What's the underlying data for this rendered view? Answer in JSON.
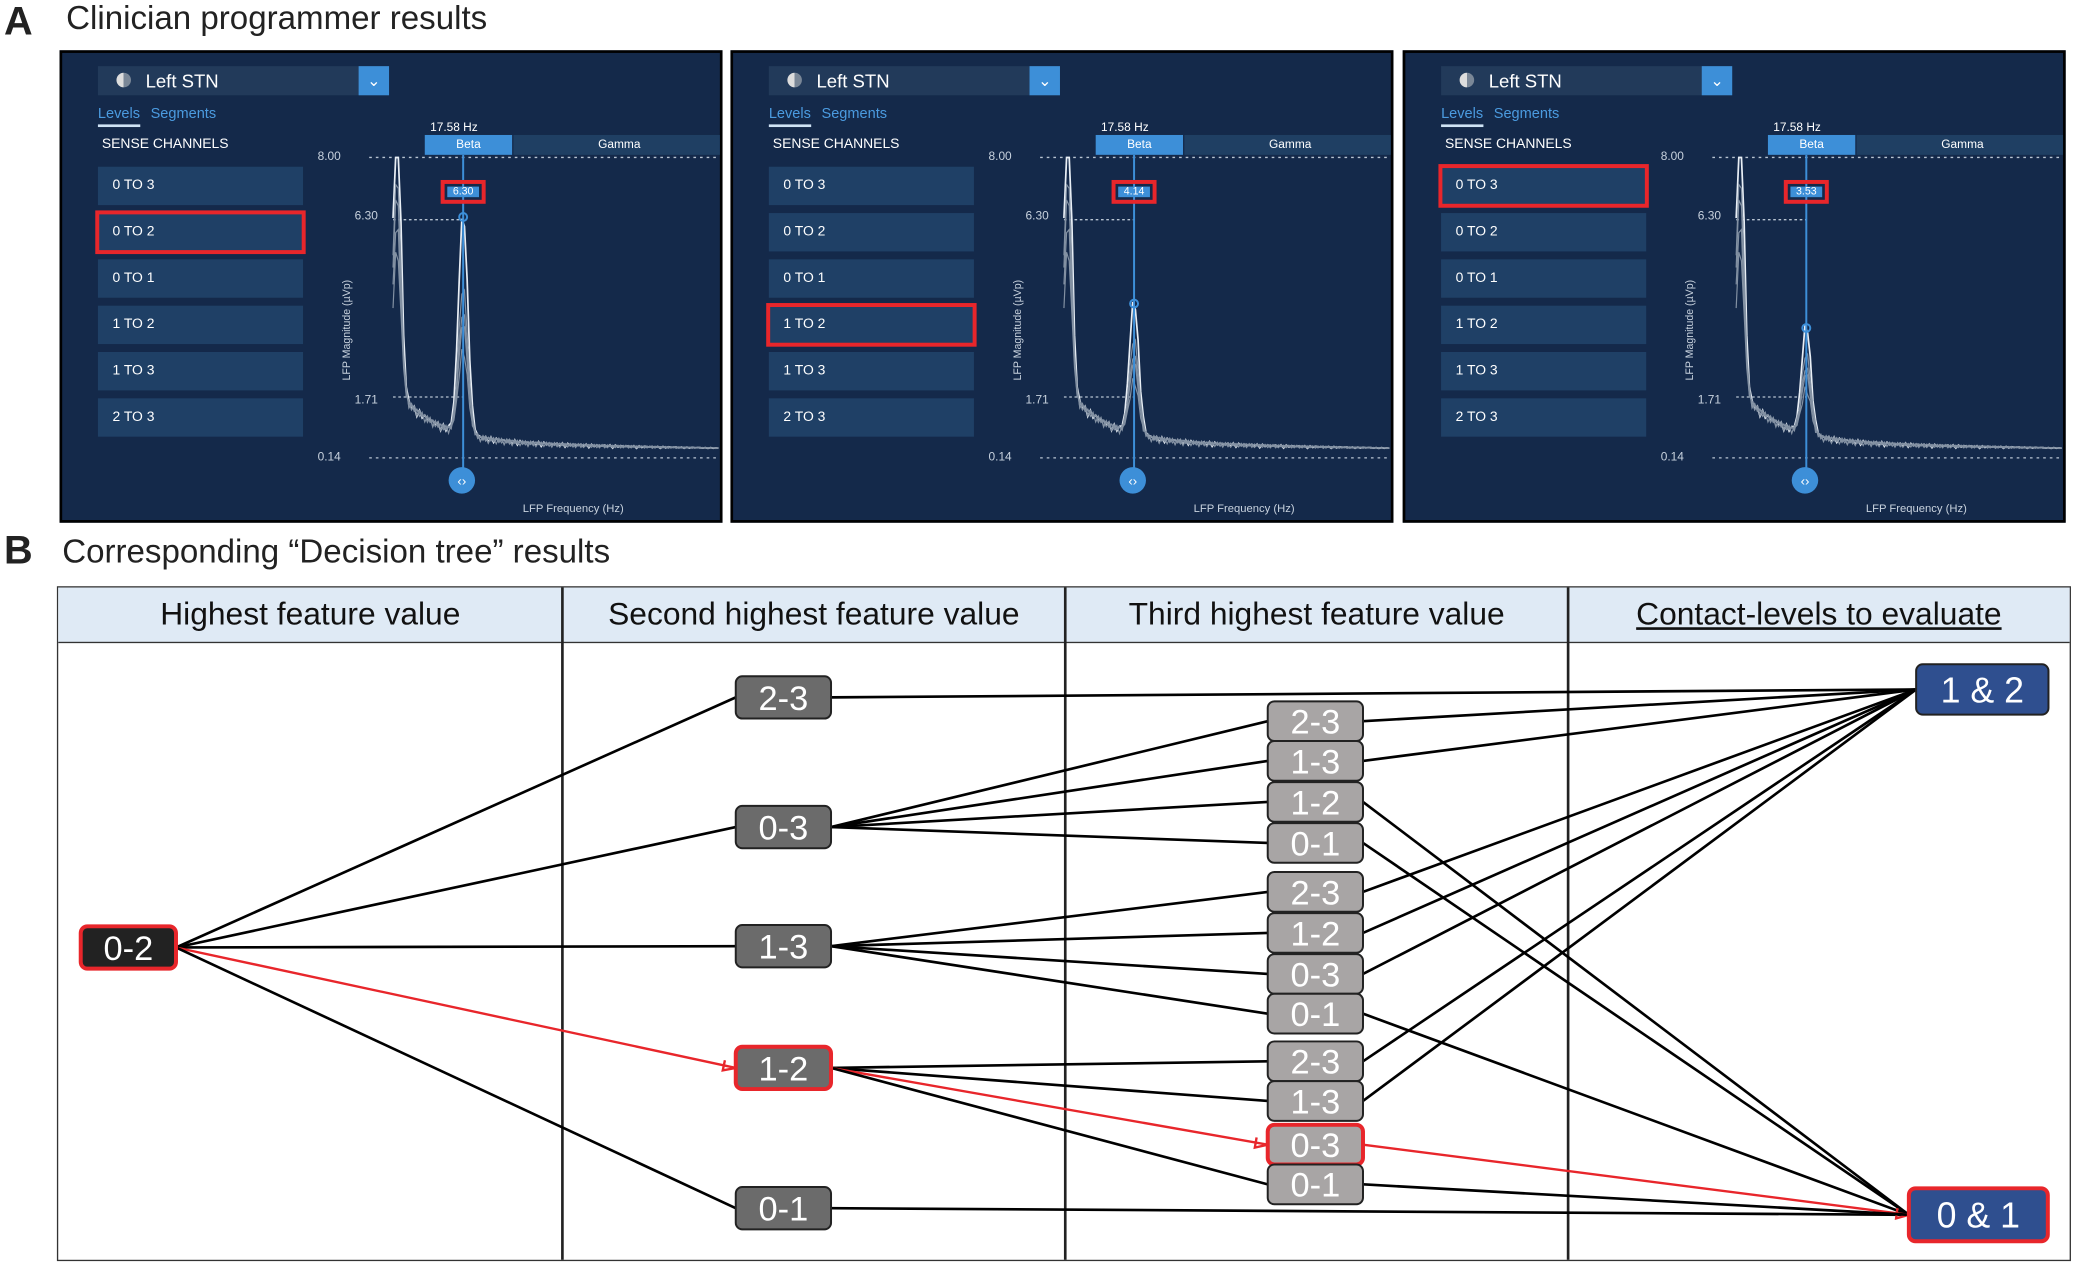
{
  "panel_a": {
    "letter": "A",
    "title": "Clinician programmer results",
    "panels": [
      {
        "hemisphere": "Left STN",
        "tabs": [
          "Levels",
          "Segments"
        ],
        "sense_label": "SENSE CHANNELS",
        "channels": [
          "0 TO 3",
          "0 TO 2",
          "0 TO 1",
          "1 TO 2",
          "1 TO 3",
          "2 TO 3"
        ],
        "selected_channel": "0 TO 2",
        "frequency_label": "17.58 Hz",
        "bands": [
          "Beta",
          "Gamma"
        ],
        "peak_value": "6.30",
        "peak_numeric": 6.3,
        "y_ticks": [
          "8.00",
          "6.30",
          "1.71",
          "0.14"
        ],
        "y_label": "LFP Magnitude (µVp)",
        "x_label": "LFP Frequency (Hz)"
      },
      {
        "hemisphere": "Left STN",
        "tabs": [
          "Levels",
          "Segments"
        ],
        "sense_label": "SENSE CHANNELS",
        "channels": [
          "0 TO 3",
          "0 TO 2",
          "0 TO 1",
          "1 TO 2",
          "1 TO 3",
          "2 TO 3"
        ],
        "selected_channel": "1 TO 2",
        "frequency_label": "17.58 Hz",
        "bands": [
          "Beta",
          "Gamma"
        ],
        "peak_value": "4.14",
        "peak_numeric": 4.14,
        "y_ticks": [
          "8.00",
          "6.30",
          "1.71",
          "0.14"
        ],
        "y_label": "LFP Magnitude (µVp)",
        "x_label": "LFP Frequency (Hz)"
      },
      {
        "hemisphere": "Left STN",
        "tabs": [
          "Levels",
          "Segments"
        ],
        "sense_label": "SENSE CHANNELS",
        "channels": [
          "0 TO 3",
          "0 TO 2",
          "0 TO 1",
          "1 TO 2",
          "1 TO 3",
          "2 TO 3"
        ],
        "selected_channel": "0 TO 3",
        "frequency_label": "17.58 Hz",
        "bands": [
          "Beta",
          "Gamma"
        ],
        "peak_value": "3.53",
        "peak_numeric": 3.53,
        "y_ticks": [
          "8.00",
          "6.30",
          "1.71",
          "0.14"
        ],
        "y_label": "LFP Magnitude (µVp)",
        "x_label": "LFP Frequency (Hz)"
      }
    ]
  },
  "panel_b": {
    "letter": "B",
    "title": "Corresponding “Decision tree” results",
    "columns": [
      "Highest feature value",
      "Second highest feature value",
      "Third highest feature value",
      "Contact-levels to evaluate"
    ],
    "root": "0-2",
    "level2": [
      "2-3",
      "0-3",
      "1-3",
      "1-2",
      "0-1"
    ],
    "level3_groups": [
      {
        "parent": "0-3",
        "items": [
          "2-3",
          "1-3",
          "1-2",
          "0-1"
        ]
      },
      {
        "parent": "1-3",
        "items": [
          "2-3",
          "1-2",
          "0-3",
          "0-1"
        ]
      },
      {
        "parent": "1-2",
        "items": [
          "2-3",
          "1-3",
          "0-3",
          "0-1"
        ]
      }
    ],
    "outcomes": [
      "1 & 2",
      "0 & 1"
    ],
    "highlighted_path": [
      "0-2",
      "1-2",
      "0-3",
      "0 & 1"
    ],
    "colors": {
      "highlight": "#e8262b",
      "outcome": "#2f4f8f",
      "level2": "#6b6b6b",
      "level3": "#a8a5a5",
      "root": "#222222",
      "header": "#dfeaf5"
    }
  }
}
